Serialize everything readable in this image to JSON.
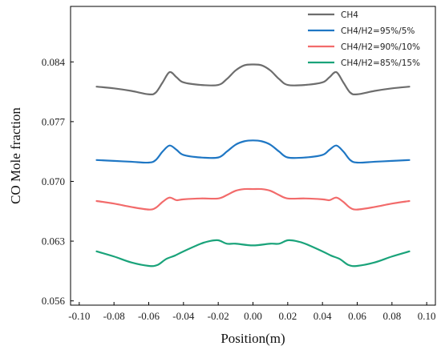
{
  "chart_data": {
    "type": "line",
    "title": "",
    "xlabel": "Position(m)",
    "ylabel": "CO Mole fraction",
    "xlim": [
      -0.105,
      0.105
    ],
    "ylim": [
      0.0555,
      0.0905
    ],
    "xticks": [
      -0.1,
      -0.08,
      -0.06,
      -0.04,
      -0.02,
      0.0,
      0.02,
      0.04,
      0.06,
      0.08,
      0.1
    ],
    "xtick_labels": [
      "-0.10",
      "-0.08",
      "-0.06",
      "-0.04",
      "-0.02",
      "0.00",
      "0.02",
      "0.04",
      "0.06",
      "0.08",
      "0.10"
    ],
    "yticks": [
      0.056,
      0.063,
      0.07,
      0.077,
      0.084
    ],
    "ytick_labels": [
      "0.056",
      "0.063",
      "0.070",
      "0.077",
      "0.084"
    ],
    "grid": false,
    "legend_position": "top-right",
    "series": [
      {
        "name": "CH4",
        "color": "#6d6d6d",
        "x": [
          -0.09,
          -0.08,
          -0.07,
          -0.06,
          -0.056,
          -0.052,
          -0.048,
          -0.044,
          -0.04,
          -0.03,
          -0.02,
          -0.015,
          -0.01,
          -0.005,
          0.0,
          0.005,
          0.01,
          0.015,
          0.02,
          0.03,
          0.04,
          0.044,
          0.048,
          0.052,
          0.056,
          0.06,
          0.07,
          0.08,
          0.09
        ],
        "y": [
          0.0811,
          0.0809,
          0.0806,
          0.0802,
          0.0804,
          0.0816,
          0.0828,
          0.0822,
          0.0816,
          0.0813,
          0.0813,
          0.082,
          0.083,
          0.0836,
          0.0837,
          0.0836,
          0.083,
          0.082,
          0.0813,
          0.0813,
          0.0816,
          0.0822,
          0.0828,
          0.0816,
          0.0804,
          0.0802,
          0.0806,
          0.0809,
          0.0811
        ]
      },
      {
        "name": "CH4/H2=95%/5%",
        "color": "#1f77c4",
        "x": [
          -0.09,
          -0.08,
          -0.07,
          -0.06,
          -0.056,
          -0.052,
          -0.048,
          -0.044,
          -0.04,
          -0.03,
          -0.02,
          -0.015,
          -0.01,
          -0.005,
          0.0,
          0.005,
          0.01,
          0.015,
          0.02,
          0.03,
          0.04,
          0.044,
          0.048,
          0.052,
          0.056,
          0.06,
          0.07,
          0.08,
          0.09
        ],
        "y": [
          0.0725,
          0.0724,
          0.0723,
          0.0722,
          0.0725,
          0.0735,
          0.0742,
          0.0737,
          0.0731,
          0.0728,
          0.0728,
          0.0735,
          0.0743,
          0.0747,
          0.0748,
          0.0747,
          0.0743,
          0.0735,
          0.0728,
          0.0728,
          0.0731,
          0.0737,
          0.0742,
          0.0735,
          0.0725,
          0.0722,
          0.0723,
          0.0724,
          0.0725
        ]
      },
      {
        "name": "CH4/H2=90%/10%",
        "color": "#f26b6b",
        "x": [
          -0.09,
          -0.08,
          -0.07,
          -0.06,
          -0.056,
          -0.052,
          -0.048,
          -0.044,
          -0.04,
          -0.03,
          -0.02,
          -0.015,
          -0.01,
          -0.005,
          0.0,
          0.005,
          0.01,
          0.015,
          0.02,
          0.03,
          0.04,
          0.044,
          0.048,
          0.052,
          0.056,
          0.06,
          0.07,
          0.08,
          0.09
        ],
        "y": [
          0.0677,
          0.0674,
          0.067,
          0.0667,
          0.0669,
          0.0676,
          0.0681,
          0.0678,
          0.0679,
          0.068,
          0.068,
          0.0684,
          0.0689,
          0.0691,
          0.0691,
          0.0691,
          0.0689,
          0.0684,
          0.068,
          0.068,
          0.0679,
          0.0678,
          0.0681,
          0.0676,
          0.0669,
          0.0667,
          0.067,
          0.0674,
          0.0677
        ]
      },
      {
        "name": "CH4/H2=85%/15%",
        "color": "#1aa37a",
        "x": [
          -0.09,
          -0.08,
          -0.07,
          -0.06,
          -0.055,
          -0.05,
          -0.045,
          -0.04,
          -0.03,
          -0.025,
          -0.02,
          -0.015,
          -0.01,
          0.0,
          0.01,
          0.015,
          0.02,
          0.025,
          0.03,
          0.04,
          0.045,
          0.05,
          0.055,
          0.06,
          0.07,
          0.08,
          0.09
        ],
        "y": [
          0.0618,
          0.0612,
          0.0605,
          0.0601,
          0.0602,
          0.0609,
          0.0613,
          0.0618,
          0.0627,
          0.063,
          0.0631,
          0.0627,
          0.0627,
          0.0625,
          0.0627,
          0.0627,
          0.0631,
          0.063,
          0.0627,
          0.0618,
          0.0613,
          0.0609,
          0.0602,
          0.0601,
          0.0605,
          0.0612,
          0.0618
        ]
      }
    ]
  }
}
